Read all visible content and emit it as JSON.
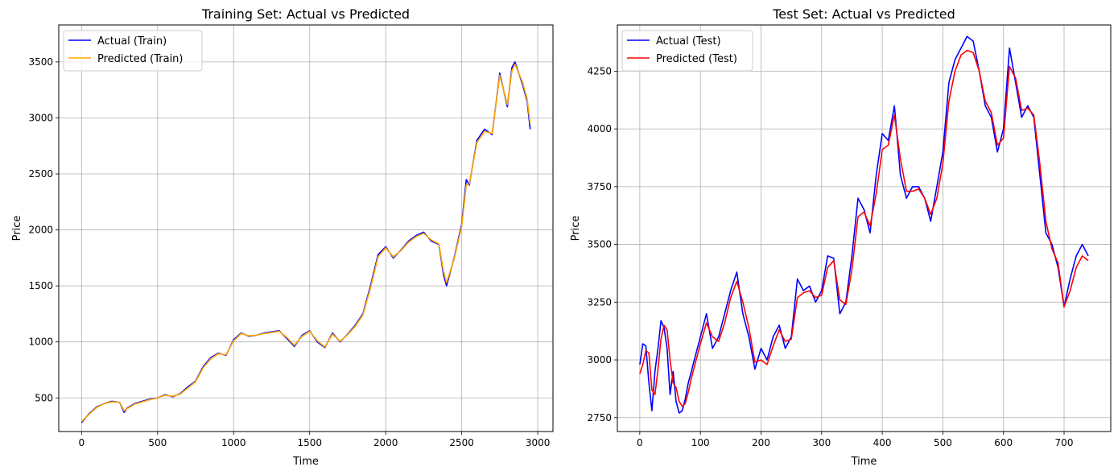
{
  "chart_data": [
    {
      "type": "line",
      "title": "Training Set: Actual vs Predicted",
      "xlabel": "Time",
      "ylabel": "Price",
      "xlim": [
        -150,
        3100
      ],
      "ylim": [
        200,
        3830
      ],
      "xticks": [
        0,
        500,
        1000,
        1500,
        2000,
        2500,
        3000
      ],
      "yticks": [
        500,
        1000,
        1500,
        2000,
        2500,
        3000,
        3500
      ],
      "grid": true,
      "legend_position": "upper-left",
      "series": [
        {
          "name": "Actual (Train)",
          "color": "#0000ff",
          "x": [
            0,
            50,
            100,
            150,
            200,
            250,
            280,
            300,
            350,
            400,
            450,
            500,
            550,
            600,
            650,
            700,
            750,
            800,
            850,
            900,
            950,
            1000,
            1050,
            1100,
            1150,
            1200,
            1250,
            1300,
            1350,
            1400,
            1450,
            1500,
            1550,
            1600,
            1650,
            1700,
            1750,
            1800,
            1850,
            1900,
            1950,
            2000,
            2050,
            2100,
            2150,
            2200,
            2250,
            2300,
            2350,
            2380,
            2400,
            2450,
            2500,
            2530,
            2550,
            2600,
            2650,
            2700,
            2750,
            2800,
            2830,
            2850,
            2900,
            2930,
            2950
          ],
          "values": [
            280,
            360,
            420,
            450,
            470,
            460,
            370,
            410,
            450,
            470,
            490,
            500,
            530,
            510,
            540,
            600,
            650,
            780,
            860,
            900,
            880,
            1020,
            1080,
            1050,
            1060,
            1080,
            1090,
            1100,
            1030,
            960,
            1060,
            1100,
            1000,
            950,
            1080,
            1000,
            1070,
            1150,
            1250,
            1500,
            1780,
            1850,
            1750,
            1820,
            1900,
            1950,
            1980,
            1900,
            1870,
            1600,
            1500,
            1750,
            2050,
            2450,
            2400,
            2800,
            2900,
            2850,
            3400,
            3100,
            3450,
            3500,
            3300,
            3150,
            2900
          ]
        },
        {
          "name": "Predicted (Train)",
          "color": "#ffa500",
          "x": [
            0,
            50,
            100,
            150,
            200,
            250,
            280,
            300,
            350,
            400,
            450,
            500,
            550,
            600,
            650,
            700,
            750,
            800,
            850,
            900,
            950,
            1000,
            1050,
            1100,
            1150,
            1200,
            1250,
            1300,
            1350,
            1400,
            1450,
            1500,
            1550,
            1600,
            1650,
            1700,
            1750,
            1800,
            1850,
            1900,
            1950,
            2000,
            2050,
            2100,
            2150,
            2200,
            2250,
            2300,
            2350,
            2380,
            2400,
            2450,
            2500,
            2530,
            2550,
            2600,
            2650,
            2700,
            2750,
            2800,
            2830,
            2850,
            2900,
            2930,
            2950
          ],
          "values": [
            290,
            355,
            415,
            450,
            465,
            460,
            385,
            405,
            445,
            465,
            485,
            500,
            525,
            515,
            535,
            590,
            645,
            770,
            850,
            895,
            885,
            1010,
            1075,
            1055,
            1060,
            1075,
            1085,
            1095,
            1040,
            970,
            1050,
            1095,
            1010,
            955,
            1070,
            1005,
            1065,
            1140,
            1240,
            1480,
            1760,
            1840,
            1760,
            1815,
            1890,
            1940,
            1970,
            1910,
            1875,
            1630,
            1530,
            1740,
            2030,
            2400,
            2410,
            2780,
            2880,
            2860,
            3380,
            3120,
            3420,
            3480,
            3320,
            3170,
            2950
          ]
        }
      ]
    },
    {
      "type": "line",
      "title": "Test Set: Actual vs Predicted",
      "xlabel": "Time",
      "ylabel": "Price",
      "xlim": [
        -37,
        777
      ],
      "ylim": [
        2690,
        4450
      ],
      "xticks": [
        0,
        100,
        200,
        300,
        400,
        500,
        600,
        700
      ],
      "yticks": [
        2750,
        3000,
        3250,
        3500,
        3750,
        4000,
        4250,
        4500
      ],
      "grid": true,
      "legend_position": "upper-left",
      "series": [
        {
          "name": "Actual (Test)",
          "color": "#0000ff",
          "x": [
            0,
            5,
            10,
            15,
            20,
            25,
            30,
            35,
            40,
            45,
            50,
            55,
            60,
            65,
            70,
            75,
            80,
            85,
            90,
            95,
            100,
            110,
            120,
            130,
            140,
            150,
            160,
            170,
            180,
            190,
            200,
            210,
            220,
            230,
            240,
            250,
            260,
            270,
            280,
            290,
            300,
            310,
            320,
            330,
            340,
            350,
            360,
            370,
            380,
            390,
            400,
            410,
            420,
            430,
            440,
            450,
            460,
            470,
            480,
            490,
            500,
            510,
            520,
            530,
            540,
            550,
            560,
            570,
            580,
            590,
            600,
            610,
            620,
            630,
            640,
            650,
            660,
            670,
            680,
            690,
            700,
            710,
            720,
            730,
            740
          ],
          "values": [
            2980,
            3070,
            3060,
            2900,
            2780,
            2950,
            3050,
            3170,
            3140,
            3050,
            2850,
            2950,
            2820,
            2770,
            2780,
            2830,
            2900,
            2950,
            3000,
            3050,
            3100,
            3200,
            3050,
            3100,
            3200,
            3300,
            3380,
            3200,
            3100,
            2960,
            3050,
            3000,
            3100,
            3150,
            3050,
            3100,
            3350,
            3300,
            3320,
            3250,
            3300,
            3450,
            3440,
            3200,
            3250,
            3450,
            3700,
            3650,
            3550,
            3800,
            3980,
            3950,
            4100,
            3800,
            3700,
            3750,
            3750,
            3700,
            3600,
            3750,
            3900,
            4200,
            4300,
            4350,
            4400,
            4380,
            4250,
            4100,
            4050,
            3900,
            4000,
            4350,
            4200,
            4050,
            4100,
            4050,
            3800,
            3550,
            3500,
            3400,
            3230,
            3350,
            3450,
            3500,
            3450
          ]
        },
        {
          "name": "Predicted (Test)",
          "color": "#ff0000",
          "x": [
            0,
            5,
            10,
            15,
            20,
            25,
            30,
            35,
            40,
            45,
            50,
            55,
            60,
            65,
            70,
            75,
            80,
            85,
            90,
            95,
            100,
            110,
            120,
            130,
            140,
            150,
            160,
            170,
            180,
            190,
            200,
            210,
            220,
            230,
            240,
            250,
            260,
            270,
            280,
            290,
            300,
            310,
            320,
            330,
            340,
            350,
            360,
            370,
            380,
            390,
            400,
            410,
            420,
            430,
            440,
            450,
            460,
            470,
            480,
            490,
            500,
            510,
            520,
            530,
            540,
            550,
            560,
            570,
            580,
            590,
            600,
            610,
            620,
            630,
            640,
            650,
            660,
            670,
            680,
            690,
            700,
            710,
            720,
            730,
            740
          ],
          "values": [
            2940,
            2980,
            3040,
            3030,
            2870,
            2850,
            2960,
            3090,
            3150,
            3130,
            3000,
            2900,
            2880,
            2820,
            2800,
            2810,
            2860,
            2920,
            2970,
            3020,
            3070,
            3160,
            3100,
            3080,
            3160,
            3270,
            3340,
            3250,
            3140,
            2990,
            3000,
            2980,
            3060,
            3130,
            3080,
            3090,
            3270,
            3290,
            3300,
            3270,
            3280,
            3400,
            3430,
            3260,
            3240,
            3390,
            3620,
            3640,
            3580,
            3720,
            3910,
            3930,
            4060,
            3870,
            3730,
            3730,
            3740,
            3700,
            3630,
            3700,
            3850,
            4120,
            4250,
            4320,
            4340,
            4330,
            4250,
            4120,
            4070,
            3930,
            3960,
            4270,
            4220,
            4080,
            4090,
            4060,
            3850,
            3600,
            3480,
            3420,
            3230,
            3300,
            3400,
            3450,
            3430
          ]
        }
      ]
    }
  ]
}
